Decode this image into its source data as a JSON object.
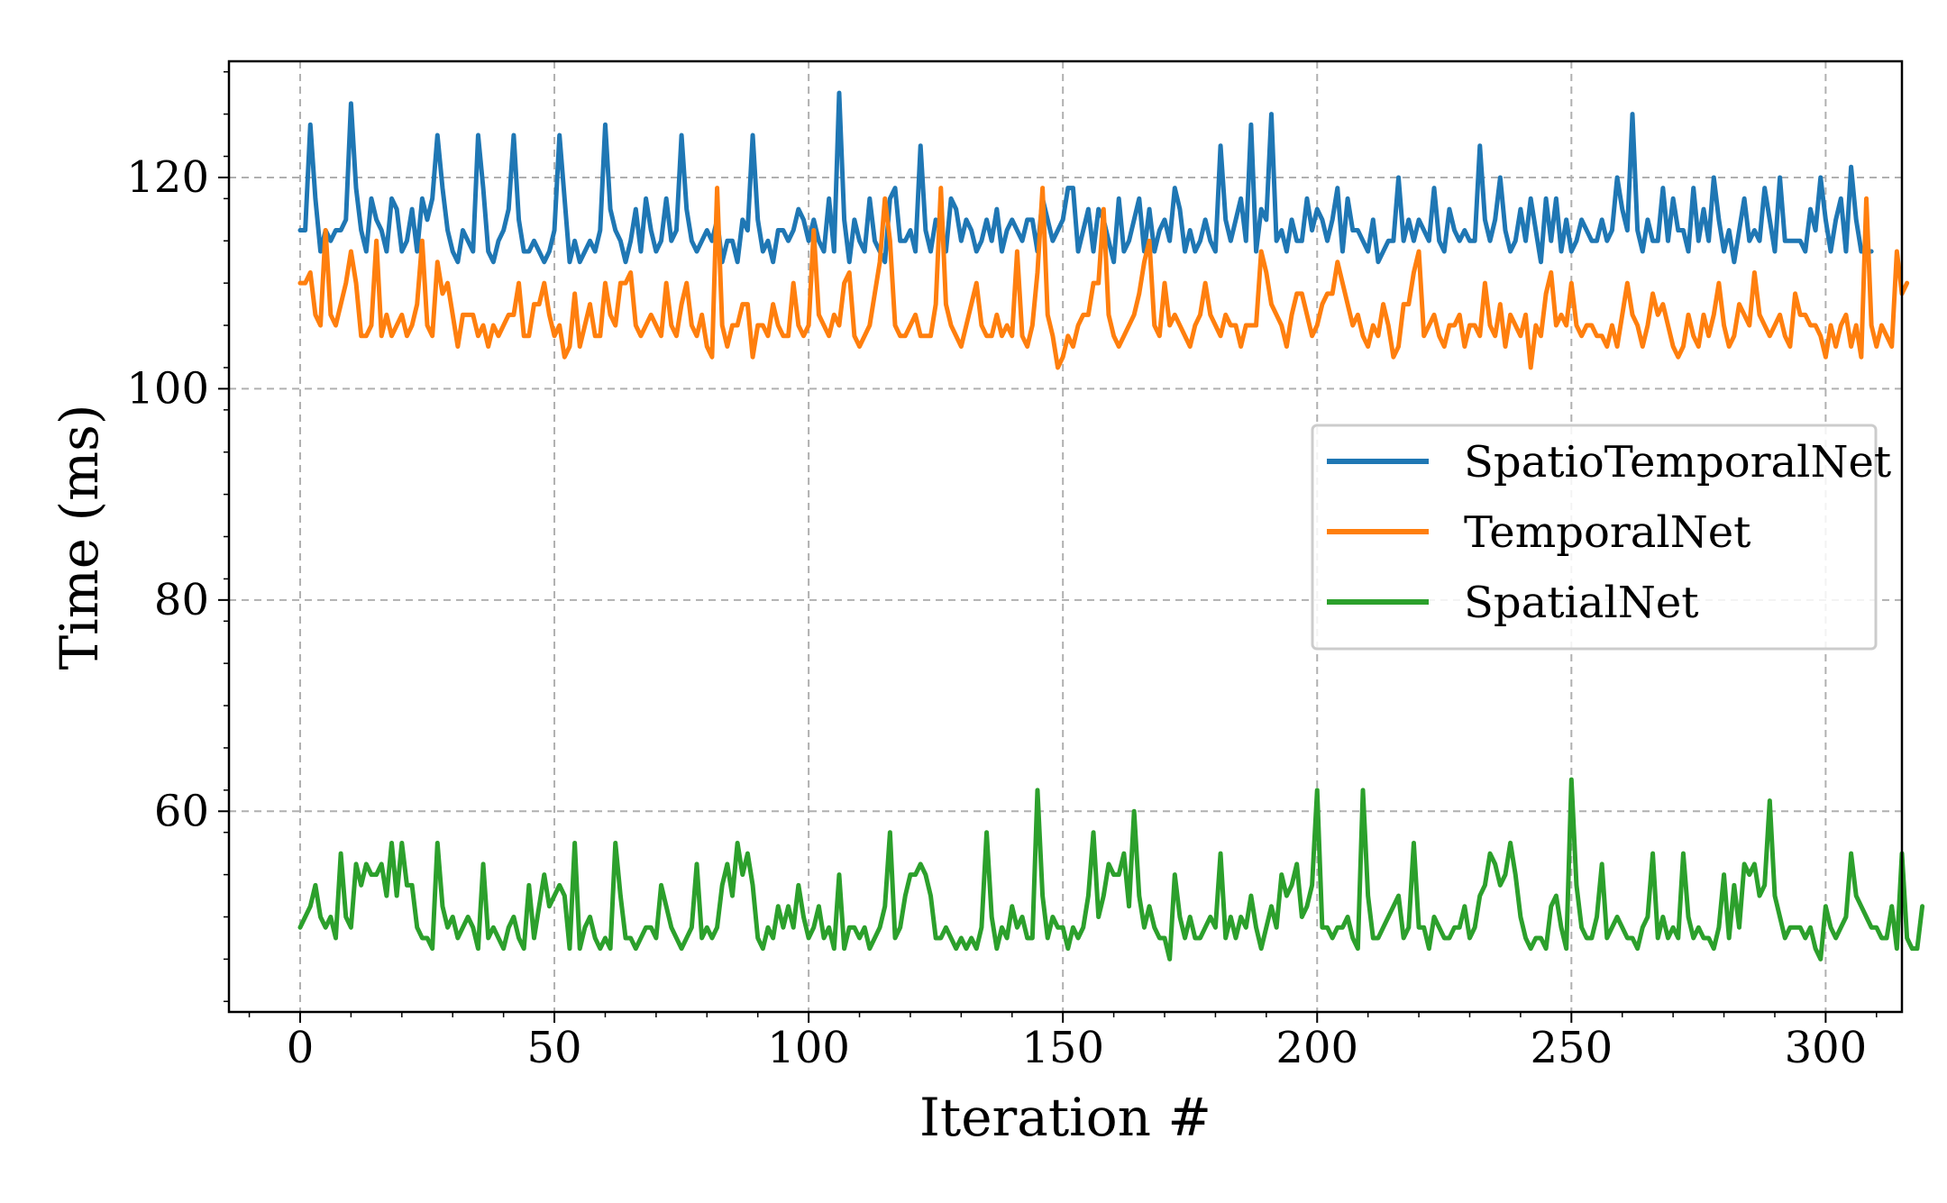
{
  "chart_data": {
    "type": "line",
    "title": "",
    "xlabel": "Iteration #",
    "ylabel": "Time (ms)",
    "xlim": [
      -14,
      315
    ],
    "ylim": [
      41,
      131
    ],
    "x_ticks": [
      0,
      50,
      100,
      150,
      200,
      250,
      300
    ],
    "y_ticks": [
      60,
      80,
      100,
      120
    ],
    "x_tick_labels": [
      "0",
      "50",
      "100",
      "150",
      "200",
      "250",
      "300"
    ],
    "y_tick_labels": [
      "60",
      "80",
      "100",
      "120"
    ],
    "grid": true,
    "legend_position": "center-right",
    "x_start": 0,
    "x_step": 1,
    "series": [
      {
        "name": "SpatioTemporalNet",
        "color": "#1f77b4",
        "values": [
          115,
          115,
          125,
          118,
          113,
          115,
          114,
          115,
          115,
          116,
          127,
          119,
          115,
          113,
          118,
          116,
          115,
          113,
          118,
          117,
          113,
          114,
          117,
          113,
          118,
          116,
          118,
          124,
          119,
          115,
          113,
          112,
          115,
          114,
          113,
          124,
          119,
          113,
          112,
          114,
          115,
          117,
          124,
          116,
          113,
          113,
          114,
          113,
          112,
          113,
          115,
          124,
          118,
          112,
          114,
          112,
          113,
          114,
          113,
          115,
          125,
          117,
          115,
          114,
          112,
          114,
          117,
          113,
          118,
          115,
          113,
          114,
          118,
          114,
          115,
          124,
          117,
          114,
          113,
          114,
          115,
          114,
          116,
          112,
          114,
          114,
          112,
          116,
          115,
          124,
          116,
          113,
          114,
          112,
          115,
          115,
          114,
          115,
          117,
          116,
          114,
          116,
          114,
          113,
          118,
          113,
          128,
          116,
          112,
          116,
          114,
          113,
          118,
          114,
          113,
          112,
          118,
          119,
          114,
          114,
          115,
          113,
          123,
          115,
          113,
          116,
          115,
          113,
          118,
          117,
          114,
          116,
          115,
          113,
          114,
          116,
          114,
          117,
          113,
          115,
          116,
          115,
          114,
          116,
          116,
          113,
          118,
          116,
          114,
          115,
          116,
          119,
          119,
          113,
          115,
          117,
          113,
          117,
          116,
          114,
          112,
          118,
          113,
          114,
          116,
          118,
          113,
          117,
          113,
          115,
          116,
          114,
          119,
          117,
          113,
          115,
          113,
          114,
          116,
          114,
          113,
          123,
          116,
          114,
          116,
          118,
          114,
          125,
          113,
          117,
          116,
          126,
          114,
          115,
          113,
          116,
          114,
          114,
          118,
          115,
          117,
          116,
          114,
          116,
          119,
          113,
          118,
          115,
          115,
          114,
          113,
          116,
          112,
          113,
          114,
          114,
          120,
          114,
          116,
          114,
          116,
          115,
          114,
          119,
          114,
          113,
          117,
          115,
          114,
          115,
          114,
          114,
          123,
          116,
          114,
          116,
          120,
          115,
          113,
          114,
          117,
          114,
          118,
          115,
          112,
          118,
          114,
          118,
          113,
          116,
          113,
          114,
          116,
          115,
          114,
          114,
          116,
          114,
          115,
          120,
          117,
          115,
          126,
          115,
          113,
          116,
          114,
          114,
          119,
          114,
          118,
          115,
          115,
          113,
          119,
          114,
          117,
          114,
          120,
          116,
          113,
          115,
          112,
          115,
          118,
          114,
          115,
          114,
          119,
          116,
          113,
          120,
          114,
          114,
          114,
          114,
          113,
          117,
          115,
          120,
          116,
          113,
          116,
          118,
          113,
          121,
          116,
          113,
          113,
          113
        ]
      },
      {
        "name": "TemporalNet",
        "color": "#ff7f0e",
        "values": [
          110,
          110,
          111,
          107,
          106,
          115,
          107,
          106,
          108,
          110,
          113,
          110,
          105,
          105,
          106,
          114,
          105,
          107,
          105,
          106,
          107,
          105,
          106,
          108,
          114,
          106,
          105,
          112,
          109,
          110,
          107,
          104,
          107,
          107,
          107,
          105,
          106,
          104,
          106,
          105,
          106,
          107,
          107,
          110,
          105,
          105,
          108,
          108,
          110,
          107,
          105,
          106,
          103,
          104,
          109,
          104,
          106,
          108,
          105,
          105,
          110,
          107,
          106,
          110,
          110,
          111,
          106,
          105,
          106,
          107,
          106,
          105,
          110,
          106,
          105,
          108,
          110,
          106,
          105,
          107,
          104,
          103,
          119,
          106,
          104,
          106,
          106,
          108,
          108,
          103,
          106,
          106,
          105,
          108,
          106,
          105,
          105,
          110,
          106,
          105,
          106,
          115,
          107,
          106,
          105,
          107,
          106,
          110,
          111,
          105,
          104,
          105,
          106,
          109,
          112,
          118,
          114,
          106,
          105,
          105,
          106,
          107,
          105,
          105,
          105,
          108,
          119,
          108,
          106,
          105,
          104,
          106,
          108,
          110,
          106,
          105,
          105,
          107,
          105,
          106,
          105,
          113,
          105,
          104,
          106,
          111,
          119,
          107,
          105,
          102,
          103,
          105,
          104,
          106,
          107,
          107,
          110,
          110,
          117,
          107,
          105,
          104,
          105,
          106,
          107,
          109,
          112,
          114,
          106,
          105,
          110,
          106,
          107,
          106,
          105,
          104,
          106,
          107,
          110,
          107,
          106,
          105,
          107,
          106,
          106,
          104,
          106,
          106,
          106,
          113,
          111,
          108,
          107,
          106,
          104,
          107,
          109,
          109,
          107,
          105,
          106,
          108,
          109,
          109,
          112,
          110,
          108,
          106,
          107,
          105,
          104,
          106,
          105,
          108,
          106,
          103,
          104,
          108,
          108,
          111,
          113,
          105,
          106,
          107,
          105,
          104,
          106,
          106,
          107,
          104,
          106,
          106,
          105,
          110,
          106,
          105,
          108,
          104,
          107,
          106,
          105,
          107,
          102,
          106,
          105,
          109,
          111,
          106,
          107,
          106,
          110,
          106,
          105,
          106,
          106,
          105,
          105,
          104,
          106,
          104,
          107,
          110,
          107,
          106,
          104,
          106,
          109,
          107,
          108,
          106,
          104,
          103,
          104,
          107,
          105,
          104,
          107,
          105,
          107,
          110,
          106,
          104,
          105,
          108,
          107,
          106,
          111,
          107,
          106,
          105,
          106,
          107,
          105,
          104,
          109,
          107,
          107,
          106,
          106,
          105,
          103,
          106,
          104,
          106,
          107,
          104,
          106,
          103,
          118,
          106,
          104,
          106,
          105,
          104,
          113,
          109,
          110
        ]
      },
      {
        "name": "SpatialNet",
        "color": "#2ca02c",
        "values": [
          49,
          50,
          51,
          53,
          50,
          49,
          50,
          48,
          56,
          50,
          49,
          55,
          53,
          55,
          54,
          54,
          55,
          52,
          57,
          52,
          57,
          53,
          53,
          49,
          48,
          48,
          47,
          57,
          51,
          49,
          50,
          48,
          49,
          50,
          49,
          47,
          55,
          48,
          49,
          48,
          47,
          49,
          50,
          48,
          47,
          53,
          48,
          51,
          54,
          51,
          52,
          53,
          52,
          47,
          57,
          47,
          49,
          50,
          48,
          47,
          48,
          47,
          57,
          52,
          48,
          48,
          47,
          48,
          49,
          49,
          48,
          53,
          51,
          49,
          48,
          47,
          48,
          49,
          55,
          48,
          49,
          48,
          49,
          53,
          55,
          52,
          57,
          54,
          56,
          53,
          48,
          47,
          49,
          48,
          51,
          49,
          51,
          49,
          53,
          50,
          48,
          49,
          51,
          48,
          49,
          47,
          54,
          47,
          49,
          49,
          48,
          49,
          47,
          48,
          49,
          51,
          58,
          48,
          49,
          52,
          54,
          54,
          55,
          54,
          52,
          48,
          48,
          49,
          48,
          47,
          48,
          47,
          48,
          47,
          49,
          58,
          50,
          47,
          49,
          48,
          51,
          49,
          50,
          48,
          48,
          62,
          52,
          48,
          50,
          49,
          49,
          47,
          49,
          48,
          49,
          52,
          58,
          50,
          52,
          55,
          54,
          54,
          56,
          51,
          60,
          52,
          49,
          51,
          49,
          48,
          48,
          46,
          54,
          50,
          48,
          50,
          48,
          48,
          49,
          50,
          49,
          56,
          48,
          50,
          48,
          50,
          49,
          52,
          49,
          47,
          49,
          51,
          49,
          54,
          52,
          53,
          55,
          50,
          51,
          53,
          62,
          49,
          49,
          48,
          49,
          49,
          50,
          48,
          47,
          62,
          52,
          48,
          48,
          49,
          50,
          51,
          52,
          48,
          49,
          57,
          49,
          49,
          47,
          50,
          49,
          48,
          48,
          49,
          49,
          51,
          48,
          49,
          52,
          53,
          56,
          55,
          53,
          54,
          57,
          54,
          50,
          48,
          47,
          48,
          48,
          47,
          51,
          52,
          49,
          47,
          63,
          53,
          49,
          48,
          48,
          50,
          55,
          48,
          49,
          50,
          49,
          48,
          48,
          47,
          49,
          50,
          56,
          48,
          50,
          48,
          49,
          48,
          56,
          50,
          48,
          49,
          48,
          48,
          47,
          49,
          54,
          48,
          53,
          49,
          55,
          54,
          55,
          52,
          53,
          61,
          52,
          50,
          48,
          49,
          49,
          49,
          48,
          49,
          47,
          46,
          51,
          49,
          48,
          49,
          50,
          56,
          52,
          51,
          50,
          49,
          49,
          48,
          48,
          51,
          47,
          56,
          48,
          47,
          47,
          51
        ]
      }
    ]
  }
}
